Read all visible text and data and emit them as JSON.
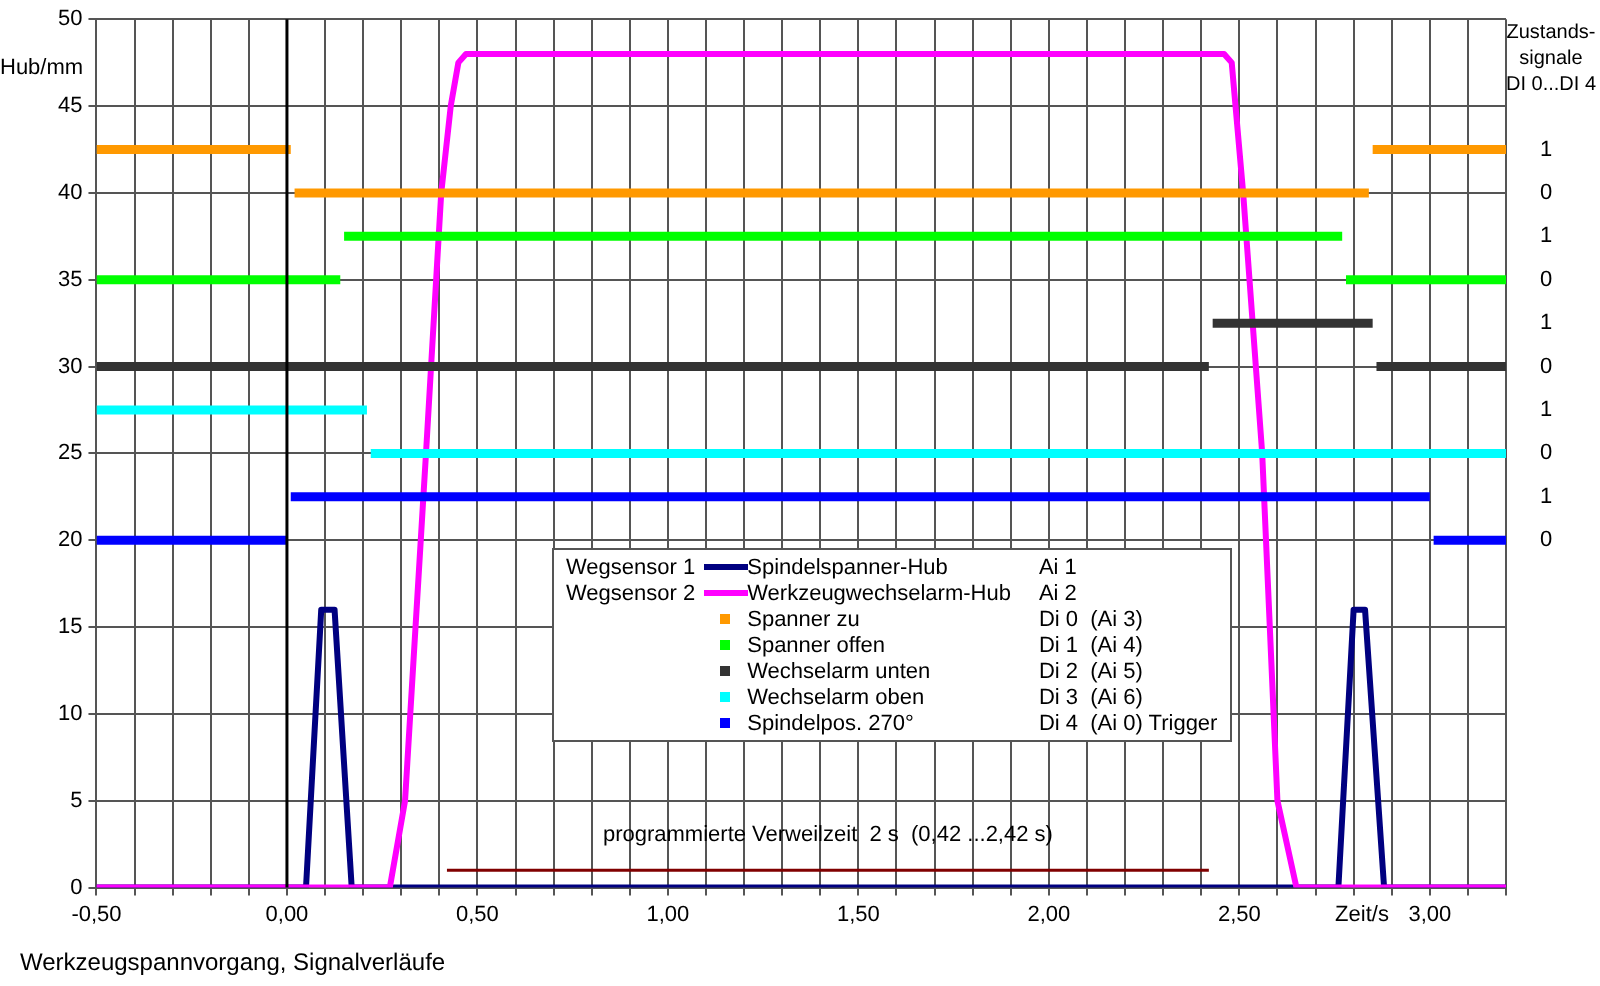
{
  "chart_data": {
    "type": "line",
    "ylabel": "Hub/mm",
    "y2label": "Zustands-\nsignale\nDI 0...DI 4",
    "xlabel": "Zeit/s",
    "xlim": [
      -0.5,
      3.2
    ],
    "xticks": [
      {
        "value": -0.5,
        "label": "-0,50"
      },
      {
        "value": -0.4,
        "label": null
      },
      {
        "value": -0.3,
        "label": null
      },
      {
        "value": -0.2,
        "label": null
      },
      {
        "value": -0.1,
        "label": null
      },
      {
        "value": 0,
        "label": "0,00"
      },
      {
        "value": 0.1,
        "label": null
      },
      {
        "value": 0.2,
        "label": null
      },
      {
        "value": 0.3,
        "label": null
      },
      {
        "value": 0.4,
        "label": null
      },
      {
        "value": 0.5,
        "label": "0,50"
      },
      {
        "value": 0.6,
        "label": null
      },
      {
        "value": 0.7,
        "label": null
      },
      {
        "value": 0.8,
        "label": null
      },
      {
        "value": 0.9,
        "label": null
      },
      {
        "value": 1,
        "label": "1,00"
      },
      {
        "value": 1.1,
        "label": null
      },
      {
        "value": 1.2,
        "label": null
      },
      {
        "value": 1.3,
        "label": null
      },
      {
        "value": 1.4,
        "label": null
      },
      {
        "value": 1.5,
        "label": "1,50"
      },
      {
        "value": 1.6,
        "label": null
      },
      {
        "value": 1.7,
        "label": null
      },
      {
        "value": 1.8,
        "label": null
      },
      {
        "value": 1.9,
        "label": null
      },
      {
        "value": 2,
        "label": "2,00"
      },
      {
        "value": 2.1,
        "label": null
      },
      {
        "value": 2.2,
        "label": null
      },
      {
        "value": 2.3,
        "label": null
      },
      {
        "value": 2.4,
        "label": null
      },
      {
        "value": 2.5,
        "label": "2,50"
      },
      {
        "value": 2.6,
        "label": null
      },
      {
        "value": 2.7,
        "label": null
      },
      {
        "value": 2.8,
        "label": null
      },
      {
        "value": 2.9,
        "label": null
      },
      {
        "value": 3,
        "label": "3,00"
      },
      {
        "value": 3.1,
        "label": null
      },
      {
        "value": 3.2,
        "label": null
      }
    ],
    "ylim": [
      0,
      50
    ],
    "yticks": [
      0,
      5,
      10,
      15,
      20,
      25,
      30,
      35,
      40,
      45,
      50
    ],
    "grid": true,
    "legend": "center",
    "ref_lines": [
      {
        "axis": "x",
        "value": 0,
        "color": "#000000"
      }
    ],
    "series": [
      {
        "name": "Spindelspanner-Hub",
        "color": "#000080",
        "x": [
          -0.5,
          0.05,
          0.09,
          0.125,
          0.17,
          2.76,
          2.8,
          2.83,
          2.88,
          3.2
        ],
        "values": [
          0,
          0,
          16,
          16,
          0,
          0,
          16,
          16,
          0,
          0
        ]
      },
      {
        "name": "Werkzeugwechselarm-Hub",
        "color": "#ff00ff",
        "x": [
          -0.5,
          0.27,
          0.31,
          0.365,
          0.405,
          0.43,
          0.45,
          0.47,
          2.46,
          2.48,
          2.49,
          2.51,
          2.56,
          2.6,
          2.65,
          3.2
        ],
        "values": [
          0,
          0,
          5,
          25,
          40,
          45,
          47.5,
          48,
          48,
          47.5,
          45,
          40,
          25,
          5,
          0,
          0
        ]
      },
      {
        "name": "Spanner zu",
        "type": "step",
        "color": "#ff9900",
        "x": [
          -0.5,
          0.01,
          0.02,
          2.84,
          2.85,
          3.2
        ],
        "values": [
          42.5,
          42.5,
          40,
          40,
          42.5,
          42.5
        ]
      },
      {
        "name": "Spanner offen",
        "type": "step",
        "color": "#00ff00",
        "x": [
          -0.5,
          0.14,
          0.15,
          2.77,
          2.78,
          3.2
        ],
        "values": [
          35,
          35,
          37.5,
          37.5,
          35,
          35
        ]
      },
      {
        "name": "Wechselarm unten",
        "type": "step",
        "color": "#333333",
        "x": [
          -0.5,
          2.42,
          2.43,
          2.85,
          2.86,
          3.2
        ],
        "values": [
          30,
          30,
          32.5,
          32.5,
          30,
          30
        ]
      },
      {
        "name": "Wechselarm oben",
        "type": "step",
        "color": "#00ffff",
        "x": [
          -0.5,
          0.21,
          0.22,
          3.2
        ],
        "values": [
          27.5,
          27.5,
          25,
          25
        ]
      },
      {
        "name": "Spindelpos. 270°",
        "type": "step",
        "color": "#0000ff",
        "x": [
          -0.5,
          0,
          0.01,
          3,
          3.01,
          3.2
        ],
        "values": [
          20,
          20,
          22.5,
          22.5,
          20,
          20
        ]
      },
      {
        "color": "#800000",
        "x": [
          0.42,
          2.42
        ],
        "values": [
          1,
          1
        ]
      }
    ],
    "annotations": [
      {
        "text": "programmierte Verweilzeit  2 s  (0,42 ...2,42 s)",
        "x": 1.42,
        "y": 1
      },
      "Werkzeugspannvorgang, Signalverläufe",
      "Wegsensor 1",
      "Wegsensor 2",
      "Ai 1",
      "Ai 2",
      "Di 0  (Ai 3)",
      "Di 1  (Ai 4)",
      "Di 2  (Ai 5)",
      "Di 3  (Ai 6)",
      "Di 4  (Ai 0) Trigger",
      "1",
      "0",
      "1",
      "0",
      "1",
      "0",
      "1",
      "0",
      "1",
      "0"
    ]
  }
}
